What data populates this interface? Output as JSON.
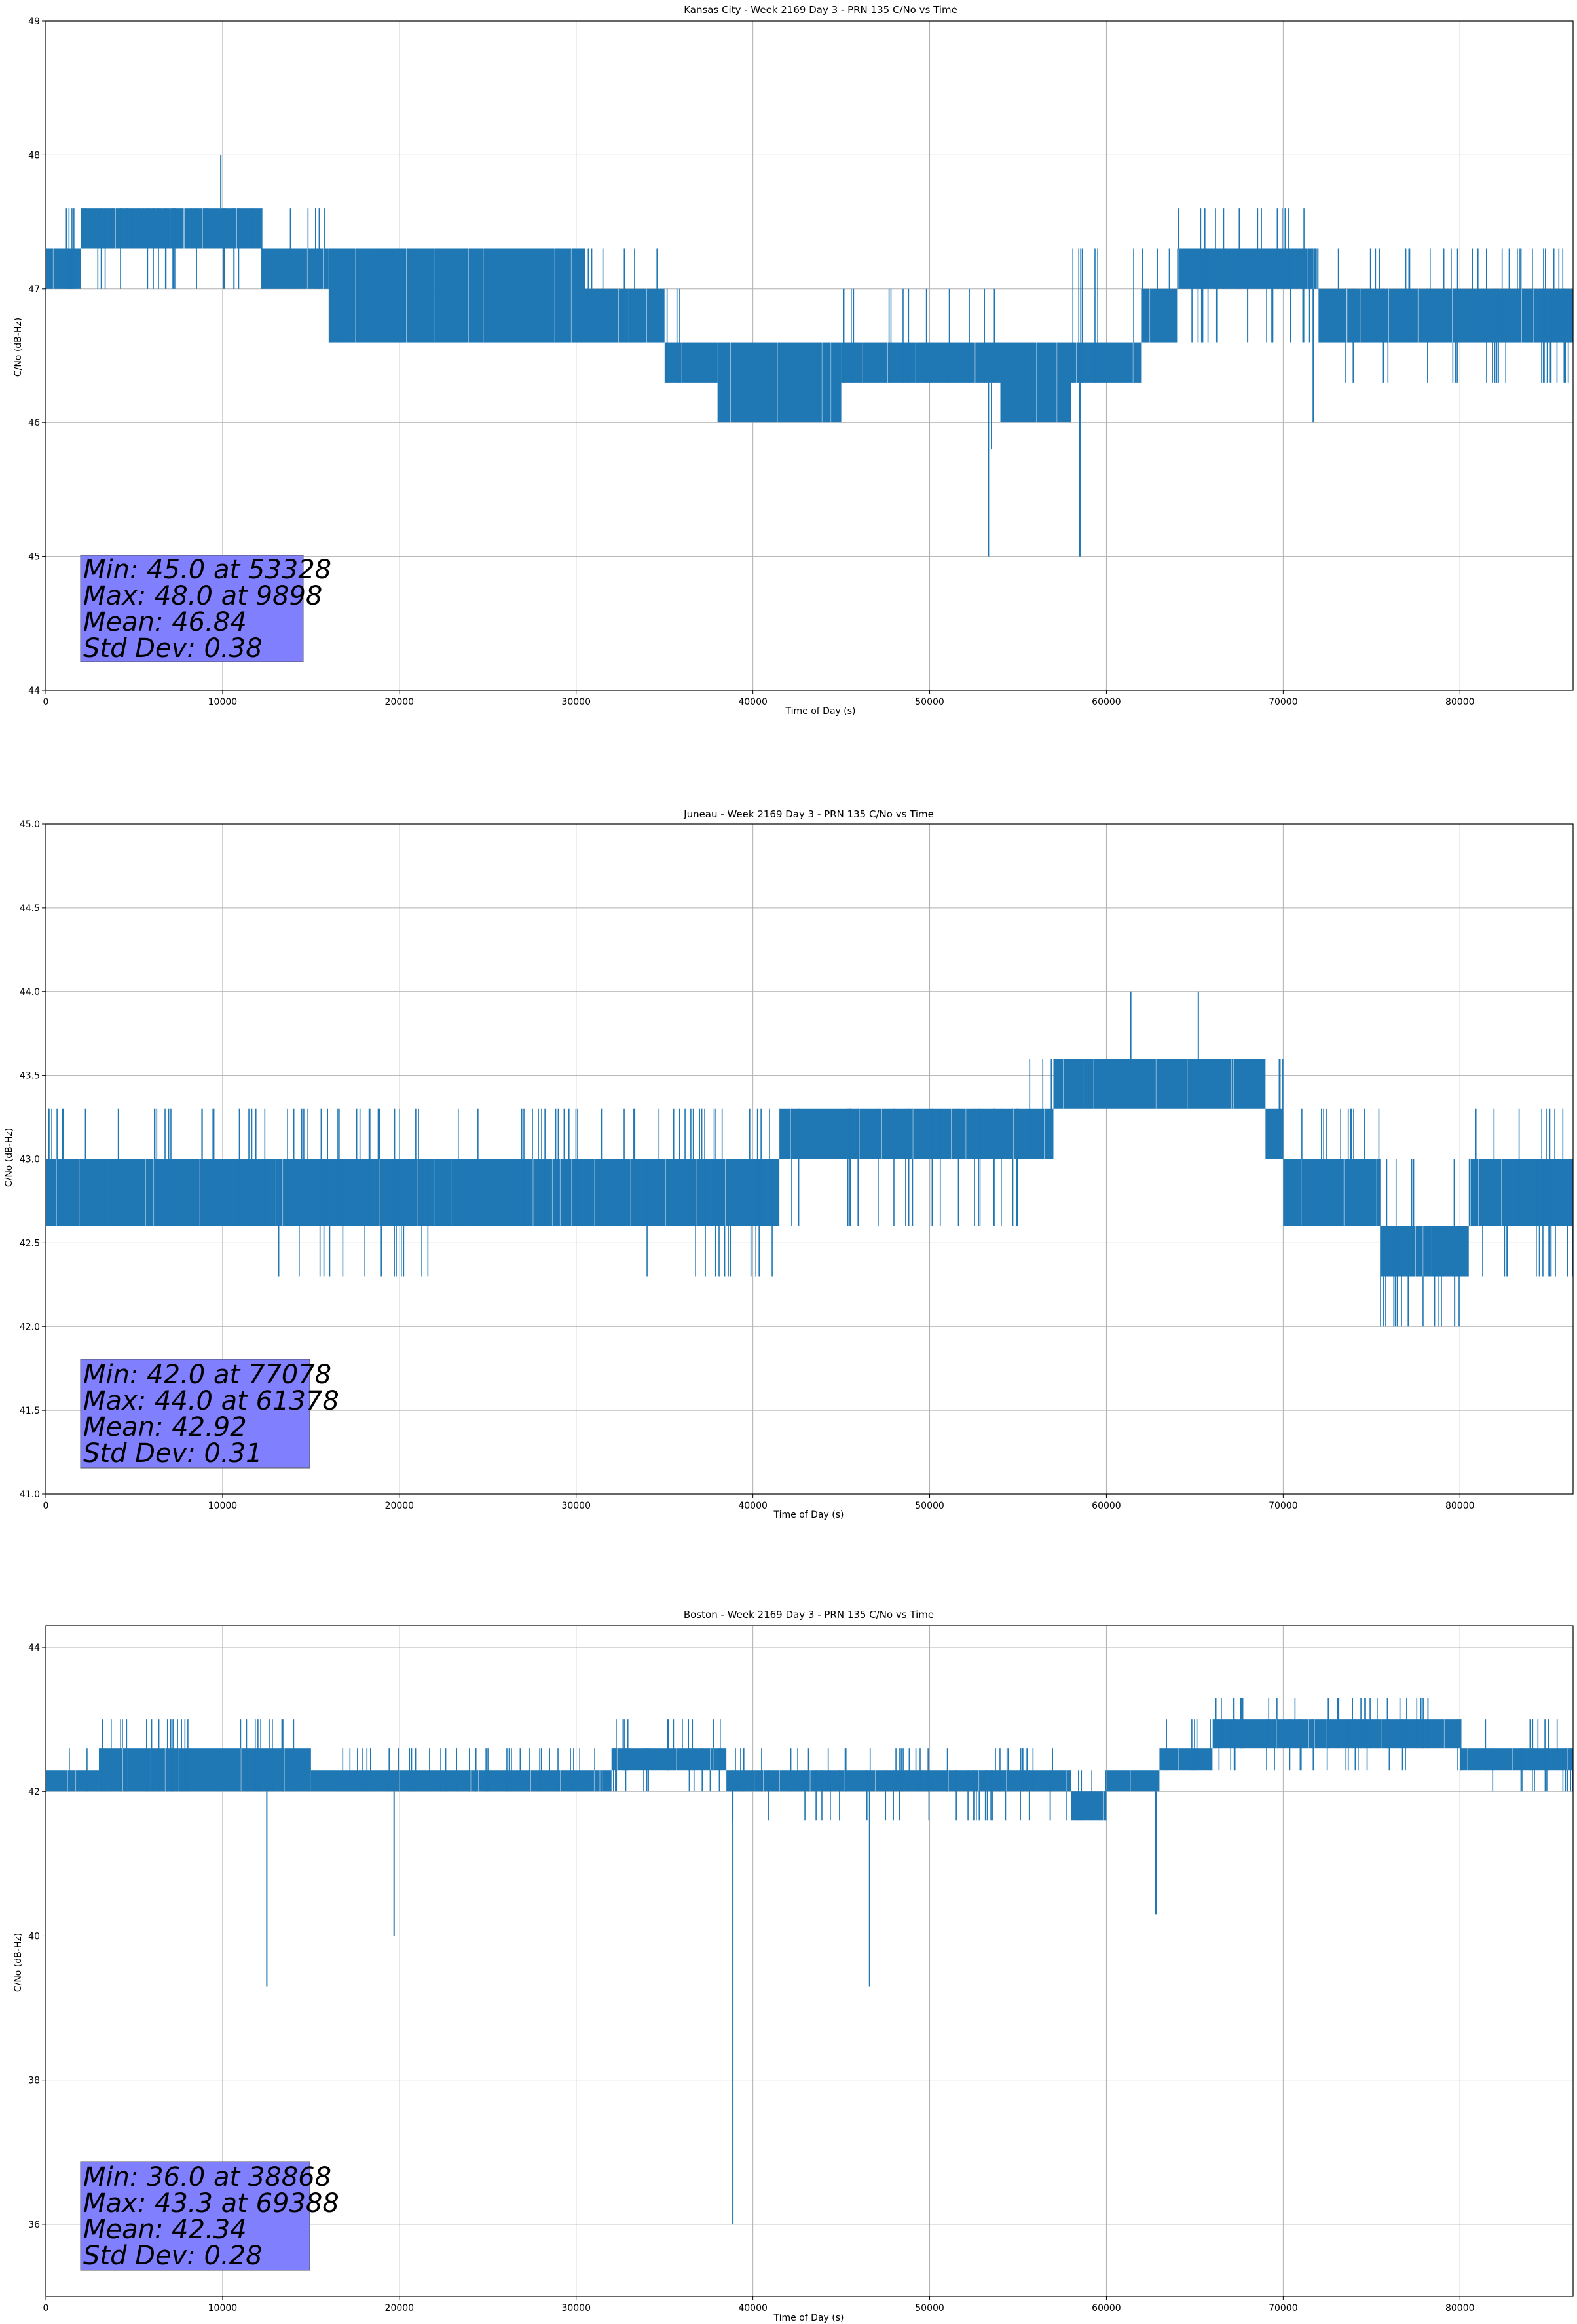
{
  "style": {
    "line_color": "#1f77b4",
    "grid_color": "#b0b0b0",
    "stats_box_color": "#8080ff",
    "stats_box_edge": "#555555"
  },
  "chart_data": [
    {
      "type": "line",
      "title": "Kansas City - Week 2169 Day 3 - PRN 135 C/No vs Time",
      "xlabel": "Time of Day (s)",
      "ylabel": "C/No (dB-Hz)",
      "xlim": [
        0,
        86400
      ],
      "ylim": [
        44,
        49
      ],
      "xticks": [
        0,
        10000,
        20000,
        30000,
        40000,
        50000,
        60000,
        70000,
        80000
      ],
      "yticks": [
        44,
        45,
        46,
        47,
        48,
        49
      ],
      "yticklabels": [
        "44",
        "45",
        "46",
        "47",
        "48",
        "49"
      ],
      "grid": true,
      "stats": [
        "Min: 45.0 at 53328",
        "Max: 48.0 at 9898",
        "Mean: 46.84",
        "Std Dev: 0.38"
      ],
      "bands": [
        {
          "x0": 0,
          "x1": 2000,
          "lo": 47.0,
          "hi": 47.3,
          "spike_hi": 47.6,
          "spike_lo": 47.0
        },
        {
          "x0": 2000,
          "x1": 12200,
          "lo": 47.3,
          "hi": 47.6,
          "spike_lo": 47.0,
          "spike_hi": 47.6
        },
        {
          "x0": 12200,
          "x1": 16000,
          "lo": 47.0,
          "hi": 47.3,
          "spike_hi": 47.6
        },
        {
          "x0": 16000,
          "x1": 22000,
          "lo": 46.6,
          "hi": 47.3,
          "spike_lo": 46.6
        },
        {
          "x0": 22000,
          "x1": 30500,
          "lo": 46.6,
          "hi": 47.3
        },
        {
          "x0": 30500,
          "x1": 35000,
          "lo": 46.6,
          "hi": 47.0,
          "spike_hi": 47.3
        },
        {
          "x0": 35000,
          "x1": 38000,
          "lo": 46.3,
          "hi": 46.6,
          "spike_hi": 47.0
        },
        {
          "x0": 38000,
          "x1": 45000,
          "lo": 46.0,
          "hi": 46.6
        },
        {
          "x0": 45000,
          "x1": 54000,
          "lo": 46.3,
          "hi": 46.6,
          "spike_hi": 47.0
        },
        {
          "x0": 54000,
          "x1": 58000,
          "lo": 46.0,
          "hi": 46.6
        },
        {
          "x0": 58000,
          "x1": 62000,
          "lo": 46.3,
          "hi": 46.6,
          "spike_hi": 47.3
        },
        {
          "x0": 62000,
          "x1": 64000,
          "lo": 46.6,
          "hi": 47.0,
          "spike_hi": 47.3
        },
        {
          "x0": 64000,
          "x1": 72000,
          "lo": 47.0,
          "hi": 47.3,
          "spike_lo": 46.6,
          "spike_hi": 47.6
        },
        {
          "x0": 72000,
          "x1": 86400,
          "lo": 46.6,
          "hi": 47.0,
          "spike_lo": 46.3,
          "spike_hi": 47.3
        }
      ],
      "spikes": [
        [
          9898,
          48.0
        ],
        [
          53328,
          45.0
        ],
        [
          58500,
          45.0
        ],
        [
          71700,
          46.0
        ],
        [
          53500,
          45.8
        ]
      ]
    },
    {
      "type": "line",
      "title": "Juneau - Week 2169 Day 3 - PRN 135 C/No vs Time",
      "xlabel": "Time of Day (s)",
      "ylabel": "C/No (dB-Hz)",
      "xlim": [
        0,
        86400
      ],
      "ylim": [
        41.0,
        45.0
      ],
      "xticks": [
        0,
        10000,
        20000,
        30000,
        40000,
        50000,
        60000,
        70000,
        80000
      ],
      "yticks": [
        41.0,
        41.5,
        42.0,
        42.5,
        43.0,
        43.5,
        44.0,
        44.5,
        45.0
      ],
      "yticklabels": [
        "41.0",
        "41.5",
        "42.0",
        "42.5",
        "43.0",
        "43.5",
        "44.0",
        "44.5",
        "45.0"
      ],
      "grid": true,
      "stats": [
        "Min: 42.0 at 77078",
        "Max: 44.0 at 61378",
        "Mean: 42.92",
        "Std Dev: 0.31"
      ],
      "bands": [
        {
          "x0": 0,
          "x1": 13000,
          "lo": 42.6,
          "hi": 43.0,
          "spike_hi": 43.3
        },
        {
          "x0": 13000,
          "x1": 22000,
          "lo": 42.6,
          "hi": 43.0,
          "spike_lo": 42.3,
          "spike_hi": 43.3
        },
        {
          "x0": 22000,
          "x1": 34000,
          "lo": 42.6,
          "hi": 43.0,
          "spike_hi": 43.3
        },
        {
          "x0": 34000,
          "x1": 41500,
          "lo": 42.6,
          "hi": 43.0,
          "spike_lo": 42.3,
          "spike_hi": 43.3
        },
        {
          "x0": 41500,
          "x1": 55500,
          "lo": 43.0,
          "hi": 43.3,
          "spike_lo": 42.6
        },
        {
          "x0": 55500,
          "x1": 57000,
          "lo": 43.0,
          "hi": 43.3,
          "spike_hi": 43.6
        },
        {
          "x0": 57000,
          "x1": 69000,
          "lo": 43.3,
          "hi": 43.6
        },
        {
          "x0": 69000,
          "x1": 70000,
          "lo": 43.0,
          "hi": 43.3,
          "spike_hi": 43.6
        },
        {
          "x0": 70000,
          "x1": 75500,
          "lo": 42.6,
          "hi": 43.0,
          "spike_hi": 43.3
        },
        {
          "x0": 75500,
          "x1": 80500,
          "lo": 42.3,
          "hi": 42.6,
          "spike_lo": 42.0,
          "spike_hi": 43.0
        },
        {
          "x0": 80500,
          "x1": 86400,
          "lo": 42.6,
          "hi": 43.0,
          "spike_hi": 43.3,
          "spike_lo": 42.3
        }
      ],
      "spikes": [
        [
          61378,
          44.0
        ],
        [
          65200,
          44.0
        ],
        [
          77078,
          42.0
        ],
        [
          79700,
          42.0
        ]
      ]
    },
    {
      "type": "line",
      "title": "Boston - Week 2169 Day 3 - PRN 135 C/No vs Time",
      "xlabel": "Time of Day (s)",
      "ylabel": "C/No (dB-Hz)",
      "xlim": [
        0,
        86400
      ],
      "ylim": [
        35.0,
        44.3
      ],
      "xticks": [
        0,
        10000,
        20000,
        30000,
        40000,
        50000,
        60000,
        70000,
        80000
      ],
      "yticks": [
        36,
        38,
        40,
        42,
        44
      ],
      "yticklabels": [
        "36",
        "38",
        "40",
        "42",
        "44"
      ],
      "grid": true,
      "stats": [
        "Min: 36.0 at 38868",
        "Max: 43.3 at 69388",
        "Mean: 42.34",
        "Std Dev: 0.28"
      ],
      "bands": [
        {
          "x0": 0,
          "x1": 3000,
          "lo": 42.0,
          "hi": 42.3,
          "spike_hi": 42.6
        },
        {
          "x0": 3000,
          "x1": 15000,
          "lo": 42.0,
          "hi": 42.6,
          "spike_hi": 43.0
        },
        {
          "x0": 15000,
          "x1": 32000,
          "lo": 42.0,
          "hi": 42.3,
          "spike_hi": 42.6
        },
        {
          "x0": 32000,
          "x1": 38500,
          "lo": 42.3,
          "hi": 42.6,
          "spike_hi": 43.0,
          "spike_lo": 42.0
        },
        {
          "x0": 38500,
          "x1": 58000,
          "lo": 42.0,
          "hi": 42.3,
          "spike_lo": 41.6,
          "spike_hi": 42.6
        },
        {
          "x0": 58000,
          "x1": 60000,
          "lo": 41.6,
          "hi": 42.0,
          "spike_hi": 42.3
        },
        {
          "x0": 60000,
          "x1": 63000,
          "lo": 42.0,
          "hi": 42.3
        },
        {
          "x0": 63000,
          "x1": 66000,
          "lo": 42.3,
          "hi": 42.6,
          "spike_hi": 43.0
        },
        {
          "x0": 66000,
          "x1": 80000,
          "lo": 42.6,
          "hi": 43.0,
          "spike_hi": 43.3,
          "spike_lo": 42.3
        },
        {
          "x0": 80000,
          "x1": 86400,
          "lo": 42.3,
          "hi": 42.6,
          "spike_hi": 43.0,
          "spike_lo": 42.0
        }
      ],
      "spikes": [
        [
          38868,
          36.0
        ],
        [
          12500,
          39.3
        ],
        [
          19700,
          40.0
        ],
        [
          46600,
          39.3
        ],
        [
          62800,
          40.3
        ]
      ]
    }
  ]
}
